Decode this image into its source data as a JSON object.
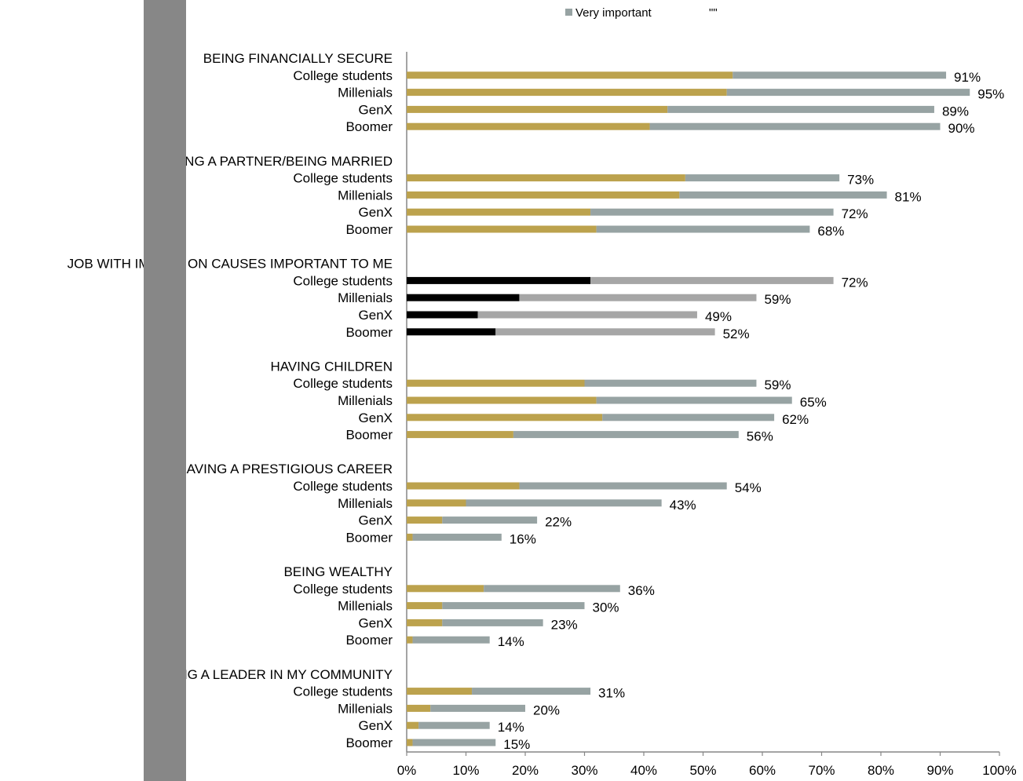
{
  "legend": {
    "very_important_label": "Very important",
    "extra_label": "\"\""
  },
  "chart_data": {
    "type": "bar",
    "orientation": "horizontal",
    "stacked": true,
    "xlim": [
      0,
      100
    ],
    "xticks": [
      "0%",
      "10%",
      "20%",
      "30%",
      "40%",
      "50%",
      "60%",
      "70%",
      "80%",
      "90%",
      "100%"
    ],
    "groups": [
      {
        "label": "BEING FINANCIALLY SECURE",
        "highlight": false,
        "rows": [
          {
            "label": "College students",
            "first": 55,
            "total": 91,
            "total_label": "91%"
          },
          {
            "label": "Millenials",
            "first": 54,
            "total": 95,
            "total_label": "95%"
          },
          {
            "label": "GenX",
            "first": 44,
            "total": 89,
            "total_label": "89%"
          },
          {
            "label": "Boomer",
            "first": 41,
            "total": 90,
            "total_label": "90%"
          }
        ]
      },
      {
        "label": "HAVING A PARTNER/BEING MARRIED",
        "highlight": false,
        "rows": [
          {
            "label": "College students",
            "first": 47,
            "total": 73,
            "total_label": "73%"
          },
          {
            "label": "Millenials",
            "first": 46,
            "total": 81,
            "total_label": "81%"
          },
          {
            "label": "GenX",
            "first": 31,
            "total": 72,
            "total_label": "72%"
          },
          {
            "label": "Boomer",
            "first": 32,
            "total": 68,
            "total_label": "68%"
          }
        ]
      },
      {
        "label": "JOB WITH IMPACT ON CAUSES IMPORTANT TO ME",
        "highlight": true,
        "rows": [
          {
            "label": "College students",
            "first": 31,
            "total": 72,
            "total_label": "72%"
          },
          {
            "label": "Millenials",
            "first": 19,
            "total": 59,
            "total_label": "59%"
          },
          {
            "label": "GenX",
            "first": 12,
            "total": 49,
            "total_label": "49%"
          },
          {
            "label": "Boomer",
            "first": 15,
            "total": 52,
            "total_label": "52%"
          }
        ]
      },
      {
        "label": "HAVING CHILDREN",
        "highlight": false,
        "rows": [
          {
            "label": "College students",
            "first": 30,
            "total": 59,
            "total_label": "59%"
          },
          {
            "label": "Millenials",
            "first": 32,
            "total": 65,
            "total_label": "65%"
          },
          {
            "label": "GenX",
            "first": 33,
            "total": 62,
            "total_label": "62%"
          },
          {
            "label": "Boomer",
            "first": 18,
            "total": 56,
            "total_label": "56%"
          }
        ]
      },
      {
        "label": "HAVING A PRESTIGIOUS CAREER",
        "highlight": false,
        "rows": [
          {
            "label": "College students",
            "first": 19,
            "total": 54,
            "total_label": "54%"
          },
          {
            "label": "Millenials",
            "first": 10,
            "total": 43,
            "total_label": "43%"
          },
          {
            "label": "GenX",
            "first": 6,
            "total": 22,
            "total_label": "22%"
          },
          {
            "label": "Boomer",
            "first": 1,
            "total": 16,
            "total_label": "16%"
          }
        ]
      },
      {
        "label": "BEING WEALTHY",
        "highlight": false,
        "rows": [
          {
            "label": "College students",
            "first": 13,
            "total": 36,
            "total_label": "36%"
          },
          {
            "label": "Millenials",
            "first": 6,
            "total": 30,
            "total_label": "30%"
          },
          {
            "label": "GenX",
            "first": 6,
            "total": 23,
            "total_label": "23%"
          },
          {
            "label": "Boomer",
            "first": 1,
            "total": 14,
            "total_label": "14%"
          }
        ]
      },
      {
        "label": "BEING A LEADER IN MY COMMUNITY",
        "highlight": false,
        "rows": [
          {
            "label": "College students",
            "first": 11,
            "total": 31,
            "total_label": "31%"
          },
          {
            "label": "Millenials",
            "first": 4,
            "total": 20,
            "total_label": "20%"
          },
          {
            "label": "GenX",
            "first": 2,
            "total": 14,
            "total_label": "14%"
          },
          {
            "label": "Boomer",
            "first": 1,
            "total": 15,
            "total_label": "15%"
          }
        ]
      }
    ],
    "colors": {
      "first_segment": "#bca24d",
      "very_important": "#97a3a3",
      "highlight_first_segment": "#000000",
      "highlight_second_segment": "#a6a6a6",
      "axis": "#868686"
    }
  }
}
